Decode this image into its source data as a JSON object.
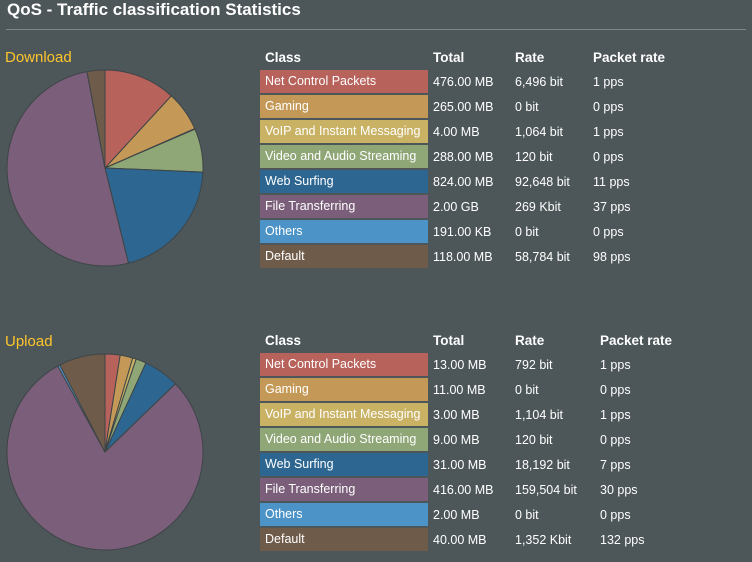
{
  "page": {
    "title": "QoS - Traffic classification Statistics"
  },
  "columns": {
    "class": "Class",
    "total": "Total",
    "rate": "Rate",
    "packet_rate": "Packet rate"
  },
  "categories": [
    {
      "name": "Net Control Packets",
      "color": "#b8625c"
    },
    {
      "name": "Gaming",
      "color": "#c49957"
    },
    {
      "name": "VoIP and Instant Messaging",
      "color": "#c9b264"
    },
    {
      "name": "Video and Audio Streaming",
      "color": "#8fa677"
    },
    {
      "name": "Web Surfing",
      "color": "#2c6691"
    },
    {
      "name": "File Transferring",
      "color": "#7b5e79"
    },
    {
      "name": "Others",
      "color": "#4c93c8"
    },
    {
      "name": "Default",
      "color": "#6f5b49"
    }
  ],
  "download": {
    "label": "Download",
    "rows": [
      {
        "total": "476.00 MB",
        "rate": "6,496 bit",
        "packet_rate": "1 pps"
      },
      {
        "total": "265.00 MB",
        "rate": "0 bit",
        "packet_rate": "0 pps"
      },
      {
        "total": "4.00 MB",
        "rate": "1,064 bit",
        "packet_rate": "1 pps"
      },
      {
        "total": "288.00 MB",
        "rate": "120 bit",
        "packet_rate": "0 pps"
      },
      {
        "total": "824.00 MB",
        "rate": "92,648 bit",
        "packet_rate": "11 pps"
      },
      {
        "total": "2.00 GB",
        "rate": "269 Kbit",
        "packet_rate": "37 pps"
      },
      {
        "total": "191.00 KB",
        "rate": "0 bit",
        "packet_rate": "0 pps"
      },
      {
        "total": "118.00 MB",
        "rate": "58,784 bit",
        "packet_rate": "98 pps"
      }
    ],
    "pie_shares": [
      476,
      265,
      4,
      288,
      824,
      2048,
      0.19,
      118
    ]
  },
  "upload": {
    "label": "Upload",
    "rows": [
      {
        "total": "13.00 MB",
        "rate": "792 bit",
        "packet_rate": "1 pps"
      },
      {
        "total": "11.00 MB",
        "rate": "0 bit",
        "packet_rate": "0 pps"
      },
      {
        "total": "3.00 MB",
        "rate": "1,104 bit",
        "packet_rate": "1 pps"
      },
      {
        "total": "9.00 MB",
        "rate": "120 bit",
        "packet_rate": "0 pps"
      },
      {
        "total": "31.00 MB",
        "rate": "18,192 bit",
        "packet_rate": "7 pps"
      },
      {
        "total": "416.00 MB",
        "rate": "159,504 bit",
        "packet_rate": "30 pps"
      },
      {
        "total": "2.00 MB",
        "rate": "0 bit",
        "packet_rate": "0 pps"
      },
      {
        "total": "40.00 MB",
        "rate": "1,352 Kbit",
        "packet_rate": "132 pps"
      }
    ],
    "pie_shares": [
      13,
      11,
      3,
      9,
      31,
      416,
      2,
      40
    ]
  }
}
